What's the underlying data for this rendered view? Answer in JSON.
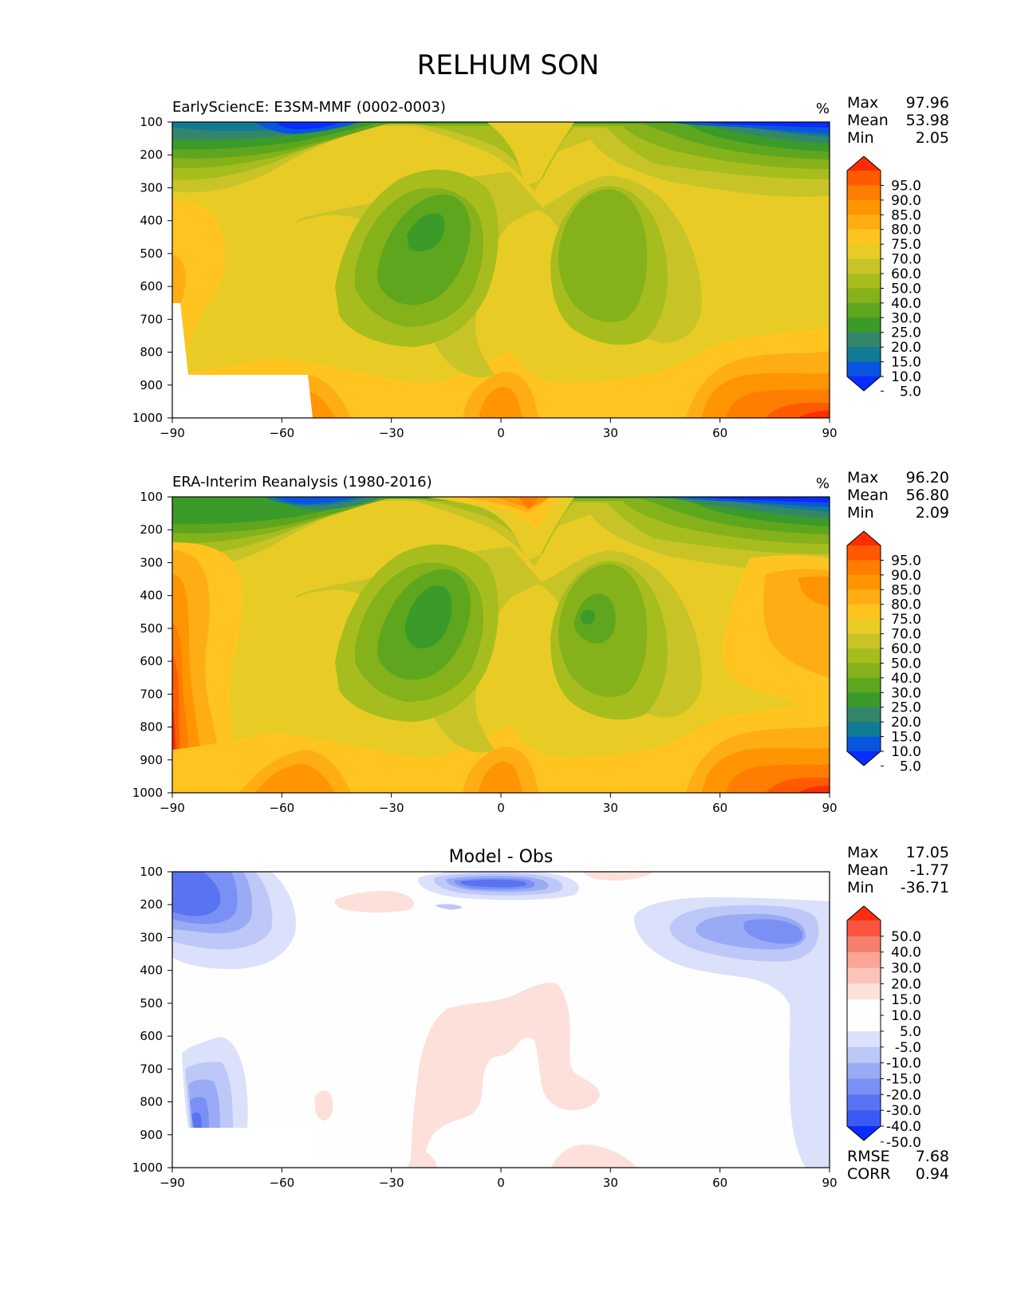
{
  "page_title": "RELHUM SON",
  "chart_data": [
    {
      "type": "heatmap",
      "title": "EarlySciencE: E3SM-MMF (0002-0003)",
      "units": "%",
      "stats": [
        {
          "label": "Max",
          "value": "97.96"
        },
        {
          "label": "Mean",
          "value": "53.98"
        },
        {
          "label": "Min",
          "value": "2.05"
        }
      ],
      "x_ticks": [
        "−90",
        "−60",
        "−30",
        "0",
        "30",
        "60",
        "90"
      ],
      "y_ticks": [
        "100",
        "200",
        "300",
        "400",
        "500",
        "600",
        "700",
        "800",
        "900",
        "1000"
      ],
      "xlim": [
        -90,
        90
      ],
      "ylim": [
        1000,
        100
      ],
      "colorbar_labels": [
        "95.0",
        "90.0",
        "85.0",
        "80.0",
        "75.0",
        "70.0",
        "60.0",
        "50.0",
        "40.0",
        "30.0",
        "25.0",
        "20.0",
        "15.0",
        "10.0",
        "5.0"
      ],
      "colorbar_colors": [
        "#ff2d00",
        "#ff5a00",
        "#ff7d00",
        "#ff9500",
        "#ffad15",
        "#ffc420",
        "#e8cc25",
        "#c8c428",
        "#a7bd1e",
        "#85b11a",
        "#5ea61d",
        "#3a9a2a",
        "#34866a",
        "#117a95",
        "#0a55e0",
        "#0a2cff"
      ]
    },
    {
      "type": "heatmap",
      "title": "ERA-Interim Reanalysis (1980-2016)",
      "units": "%",
      "stats": [
        {
          "label": "Max",
          "value": "96.20"
        },
        {
          "label": "Mean",
          "value": "56.80"
        },
        {
          "label": "Min",
          "value": "2.09"
        }
      ],
      "x_ticks": [
        "−90",
        "−60",
        "−30",
        "0",
        "30",
        "60",
        "90"
      ],
      "y_ticks": [
        "100",
        "200",
        "300",
        "400",
        "500",
        "600",
        "700",
        "800",
        "900",
        "1000"
      ],
      "xlim": [
        -90,
        90
      ],
      "ylim": [
        1000,
        100
      ],
      "colorbar_labels": [
        "95.0",
        "90.0",
        "85.0",
        "80.0",
        "75.0",
        "70.0",
        "60.0",
        "50.0",
        "40.0",
        "30.0",
        "25.0",
        "20.0",
        "15.0",
        "10.0",
        "5.0"
      ],
      "colorbar_colors": [
        "#ff2d00",
        "#ff5a00",
        "#ff7d00",
        "#ff9500",
        "#ffad15",
        "#ffc420",
        "#e8cc25",
        "#c8c428",
        "#a7bd1e",
        "#85b11a",
        "#5ea61d",
        "#3a9a2a",
        "#34866a",
        "#117a95",
        "#0a55e0",
        "#0a2cff"
      ]
    },
    {
      "type": "heatmap",
      "title": "Model - Obs",
      "units": "",
      "stats": [
        {
          "label": "Max",
          "value": "17.05"
        },
        {
          "label": "Mean",
          "value": "-1.77"
        },
        {
          "label": "Min",
          "value": "-36.71"
        }
      ],
      "extra_stats": [
        {
          "label": "RMSE",
          "value": "7.68"
        },
        {
          "label": "CORR",
          "value": "0.94"
        }
      ],
      "x_ticks": [
        "−90",
        "−60",
        "−30",
        "0",
        "30",
        "60",
        "90"
      ],
      "y_ticks": [
        "100",
        "200",
        "300",
        "400",
        "500",
        "600",
        "700",
        "800",
        "900",
        "1000"
      ],
      "xlim": [
        -90,
        90
      ],
      "ylim": [
        1000,
        100
      ],
      "colorbar_labels": [
        "50.0",
        "40.0",
        "30.0",
        "20.0",
        "15.0",
        "10.0",
        "5.0",
        "-5.0",
        "-10.0",
        "-15.0",
        "-20.0",
        "-30.0",
        "-40.0",
        "-50.0"
      ],
      "colorbar_colors": [
        "#ff2d10",
        "#f8543f",
        "#f57e6c",
        "#fba596",
        "#fbc4b8",
        "#fde0d9",
        "#fefefe",
        "#fefefe",
        "#dbe1fb",
        "#bdc8f8",
        "#9aabf6",
        "#7b90f4",
        "#5874f3",
        "#3a5af3",
        "#0a2cff"
      ]
    }
  ]
}
